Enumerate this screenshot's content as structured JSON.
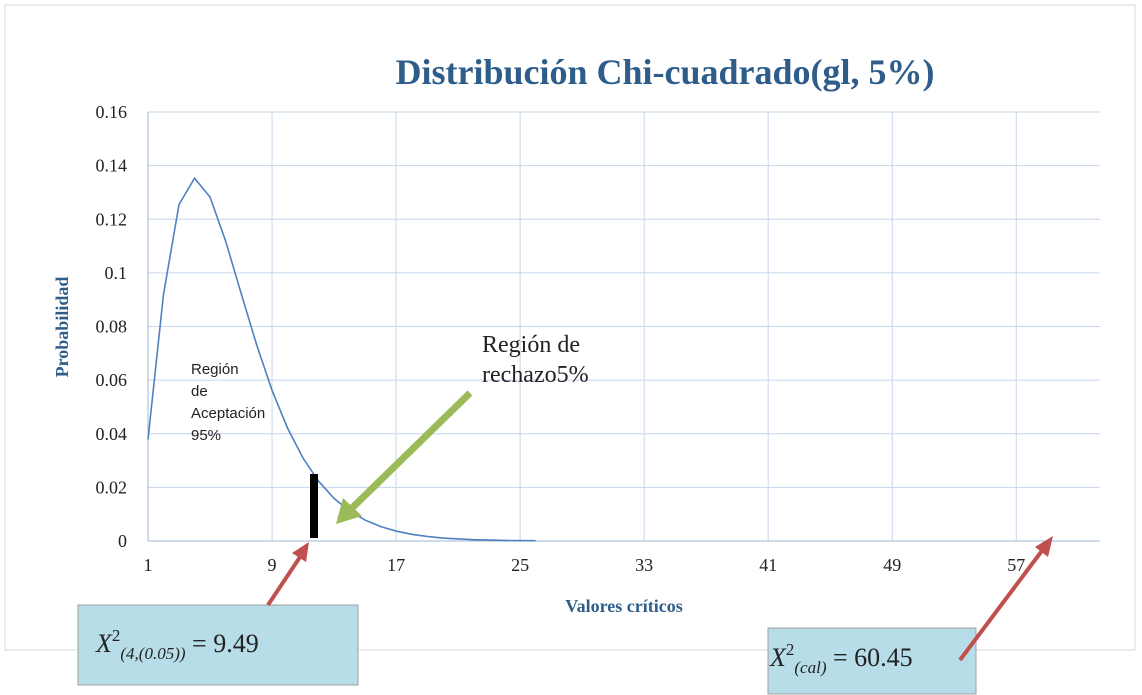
{
  "chart_data": {
    "type": "line",
    "title": "Distribución Chi-cuadrado(gl, 5%)",
    "x_label": "Valores críticos",
    "y_label": "Probabilidad",
    "x": [
      1,
      2,
      3,
      4,
      5,
      6,
      7,
      8,
      9,
      10,
      11,
      12,
      13,
      14,
      15,
      16,
      17,
      18,
      19,
      20,
      22,
      24,
      26
    ],
    "series": [
      {
        "color": "#4f81bd",
        "values": [
          0.0379,
          0.092,
          0.1255,
          0.1353,
          0.1283,
          0.112,
          0.0925,
          0.0733,
          0.0562,
          0.0421,
          0.0309,
          0.0223,
          0.0159,
          0.0112,
          0.0078,
          0.0054,
          0.0037,
          0.0025,
          0.0017,
          0.0011,
          0.0005,
          0.0002,
          0.0001
        ]
      }
    ],
    "xlim": [
      1,
      62.4
    ],
    "xticks": [
      1,
      9,
      17,
      25,
      33,
      41,
      49,
      57
    ],
    "ylim": [
      0,
      0.16
    ],
    "yticks": [
      0,
      0.02,
      0.04,
      0.06,
      0.08,
      0.1,
      0.12,
      0.14,
      0.16
    ],
    "grid": true,
    "annotations": {
      "acceptance": [
        "Región",
        "de",
        "Aceptación",
        "95%"
      ],
      "rejection": [
        "Región de",
        "rechazo5%"
      ],
      "critical_box": {
        "base": "X",
        "sup": "2",
        "sub": "(4,(0.05))",
        "rest": " = 9.49"
      },
      "calc_box": {
        "base": "X",
        "sup": "2",
        "sub": "(cal)",
        "rest": " = 60.45"
      }
    }
  }
}
